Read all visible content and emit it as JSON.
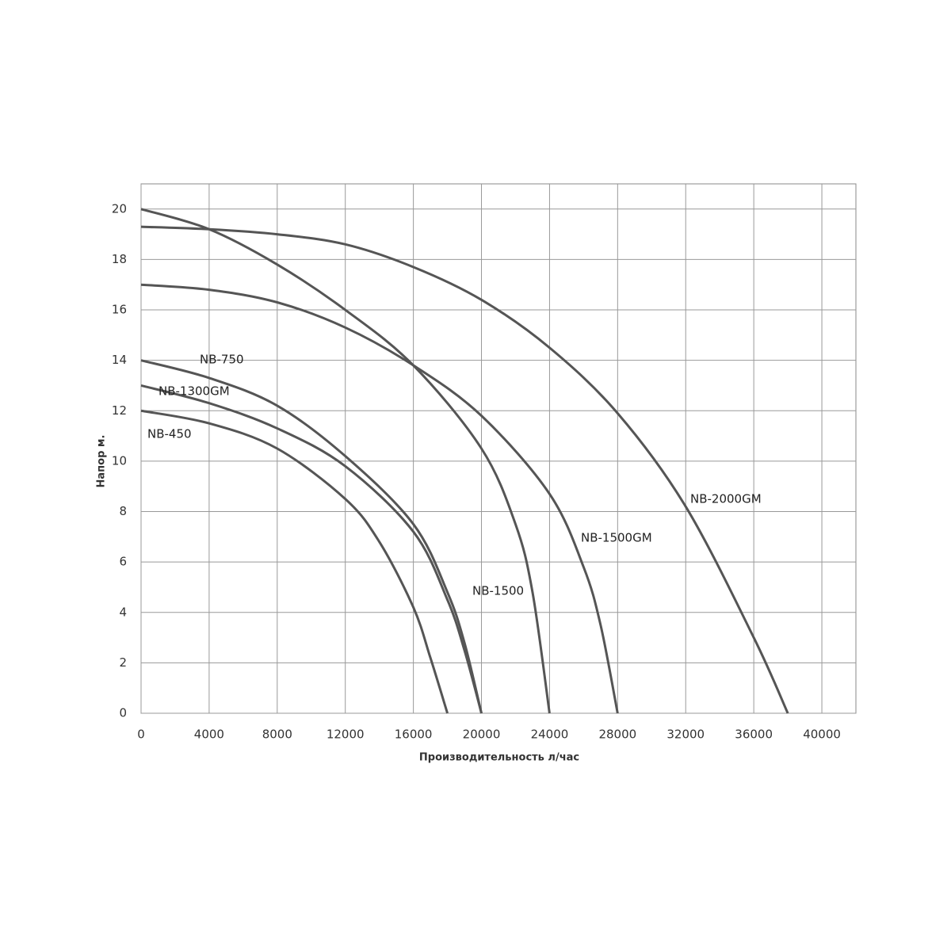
{
  "chart_data": {
    "type": "line",
    "x_label": "Производительность  л/час",
    "y_label": "Напор м.",
    "xlim": [
      0,
      42000
    ],
    "ylim": [
      0,
      21
    ],
    "xticks": [
      0,
      4000,
      8000,
      12000,
      16000,
      20000,
      24000,
      28000,
      32000,
      36000,
      40000
    ],
    "yticks": [
      0,
      2,
      4,
      6,
      8,
      10,
      12,
      14,
      16,
      18,
      20
    ],
    "grid": true,
    "series": [
      {
        "name": "NB-450",
        "color": "#555555",
        "x": [
          0,
          4000,
          8000,
          12000,
          14000,
          16000,
          17000,
          18000
        ],
        "values": [
          12,
          11.5,
          10.5,
          8.5,
          6.8,
          4.2,
          2.2,
          0
        ]
      },
      {
        "name": "NB-1300GM",
        "color": "#555555",
        "x": [
          0,
          4000,
          8000,
          12000,
          16000,
          18000,
          19000,
          20000
        ],
        "values": [
          13,
          12.3,
          11.3,
          9.8,
          7.2,
          4.5,
          2.5,
          0
        ]
      },
      {
        "name": "NB-750",
        "color": "#555555",
        "x": [
          0,
          4000,
          8000,
          12000,
          16000,
          18000,
          19000,
          20000
        ],
        "values": [
          14,
          13.3,
          12.2,
          10.2,
          7.5,
          4.8,
          2.8,
          0
        ]
      },
      {
        "name": "NB-1500",
        "color": "#555555",
        "x": [
          0,
          4000,
          8000,
          12000,
          16000,
          20000,
          22000,
          23000,
          24000
        ],
        "values": [
          20,
          19.2,
          17.8,
          16,
          13.8,
          10.5,
          7.5,
          4.8,
          0
        ]
      },
      {
        "name": "NB-1500GM",
        "color": "#555555",
        "x": [
          0,
          4000,
          8000,
          12000,
          16000,
          20000,
          24000,
          26000,
          27000,
          28000
        ],
        "values": [
          17,
          16.8,
          16.3,
          15.3,
          13.8,
          11.8,
          8.7,
          5.8,
          3.5,
          0
        ]
      },
      {
        "name": "NB-2000GM",
        "color": "#555555",
        "x": [
          0,
          4000,
          8000,
          12000,
          16000,
          20000,
          24000,
          28000,
          32000,
          36000,
          38000
        ],
        "values": [
          19.3,
          19.2,
          19,
          18.6,
          17.7,
          16.4,
          14.5,
          11.9,
          8.2,
          3,
          0
        ]
      }
    ]
  }
}
